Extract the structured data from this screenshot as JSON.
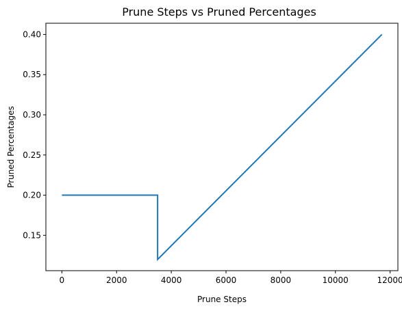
{
  "chart_data": {
    "type": "line",
    "title": "Prune Steps vs Pruned Percentages",
    "xlabel": "Prune Steps",
    "ylabel": "Pruned Percentages",
    "xlim": [
      -585,
      12285
    ],
    "ylim": [
      0.106,
      0.414
    ],
    "xticks": [
      0,
      2000,
      4000,
      6000,
      8000,
      10000,
      12000
    ],
    "xtick_labels": [
      "0",
      "2000",
      "4000",
      "6000",
      "8000",
      "10000",
      "12000"
    ],
    "yticks": [
      0.15,
      0.2,
      0.25,
      0.3,
      0.35,
      0.4
    ],
    "ytick_labels": [
      "0.15",
      "0.20",
      "0.25",
      "0.30",
      "0.35",
      "0.40"
    ],
    "grid": false,
    "series": [
      {
        "color": "#1f77b4",
        "x": [
          0,
          3500,
          3500,
          11700
        ],
        "y": [
          0.2,
          0.2,
          0.12,
          0.4
        ]
      }
    ]
  }
}
